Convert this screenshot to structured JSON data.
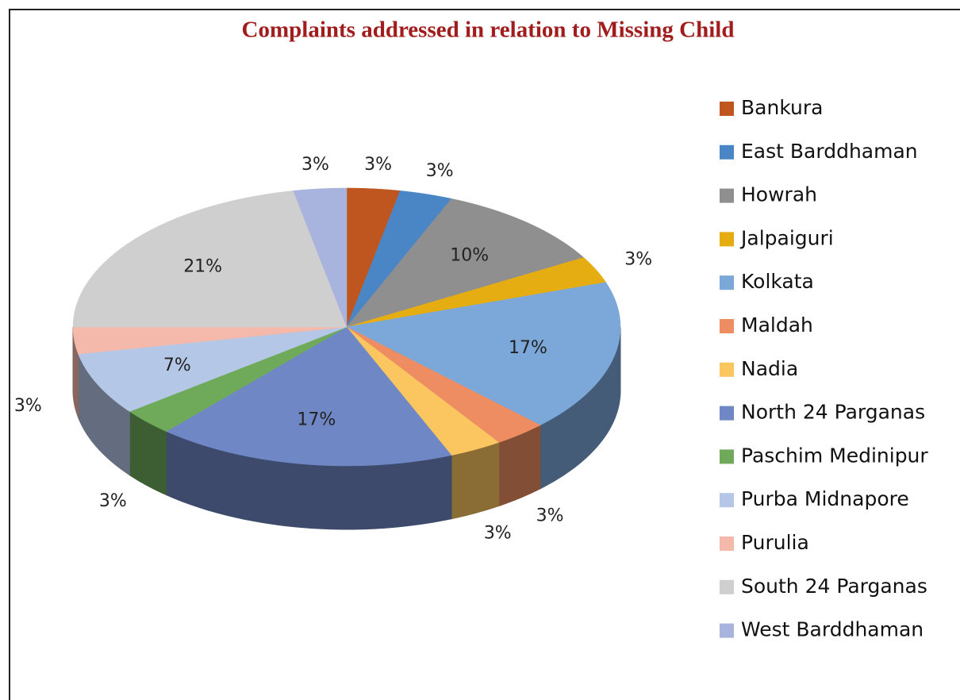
{
  "chart_data": {
    "type": "pie",
    "title": "Complaints addressed in relation to Missing Child",
    "categories": [
      "Bankura",
      "East Barddhaman",
      "Howrah",
      "Jalpaiguri",
      "Kolkata",
      "Maldah",
      "Nadia",
      "North 24 Parganas",
      "Paschim Medinipur",
      "Purba Midnapore",
      "Purulia",
      "South 24 Parganas",
      "West Barddhaman"
    ],
    "values": [
      3,
      3,
      10,
      3,
      17,
      3,
      3,
      17,
      3,
      7,
      3,
      21,
      3
    ],
    "value_labels": [
      "3%",
      "3%",
      "10%",
      "3%",
      "17%",
      "3%",
      "3%",
      "17%",
      "3%",
      "7%",
      "3%",
      "21%",
      "3%"
    ],
    "colors": [
      "#c0561f",
      "#4a86c5",
      "#8f8f8f",
      "#e6ad12",
      "#7ba7d9",
      "#ee8d62",
      "#fbc560",
      "#6f87c4",
      "#6eaa5a",
      "#b5c7e6",
      "#f4b9aa",
      "#cfcfcf",
      "#a8b3de"
    ],
    "legend": "right"
  }
}
